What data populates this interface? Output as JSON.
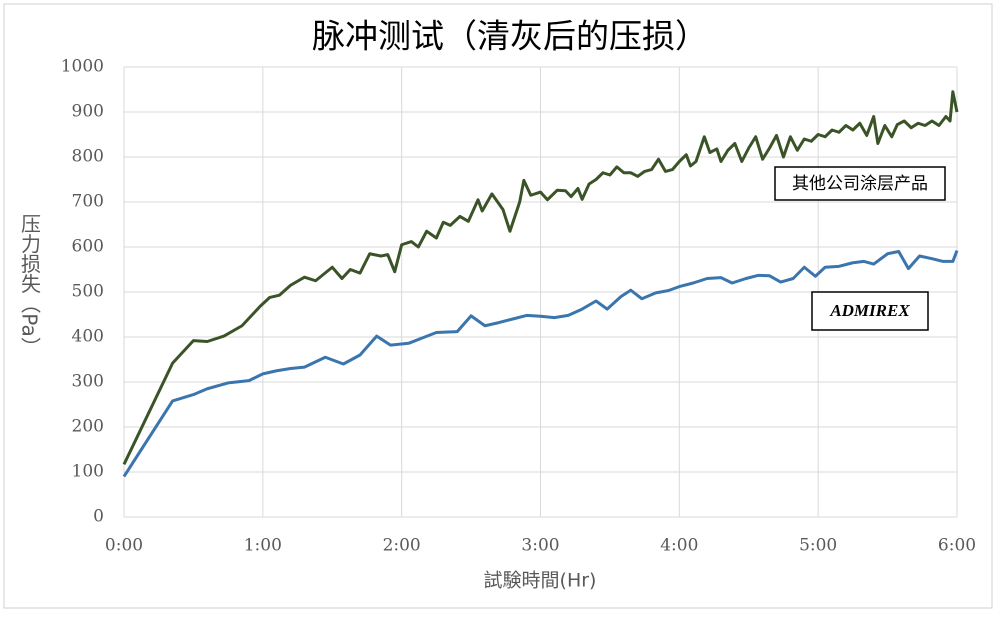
{
  "chart_data": {
    "type": "line",
    "title": "脉冲测试（清灰后的压损）",
    "x_label": "試験時間(Hr)",
    "y_label": "压力损失（Pa）",
    "xlim": [
      0,
      6
    ],
    "xticks": [
      {
        "value": 0,
        "label": "0:00"
      },
      {
        "value": 1,
        "label": "1:00"
      },
      {
        "value": 2,
        "label": "2:00"
      },
      {
        "value": 3,
        "label": "3:00"
      },
      {
        "value": 4,
        "label": "4:00"
      },
      {
        "value": 5,
        "label": "5:00"
      },
      {
        "value": 6,
        "label": "6:00"
      }
    ],
    "ylim": [
      0,
      1000
    ],
    "yticks": [
      0,
      100,
      200,
      300,
      400,
      500,
      600,
      700,
      800,
      900,
      1000
    ],
    "grid": true,
    "series": [
      {
        "name": "其他公司涂层产品",
        "color": "#3b5427",
        "x": [
          0,
          0.35,
          0.5,
          0.6,
          0.72,
          0.85,
          0.98,
          1.05,
          1.12,
          1.2,
          1.3,
          1.38,
          1.5,
          1.57,
          1.63,
          1.7,
          1.77,
          1.85,
          1.9,
          1.95,
          2.0,
          2.07,
          2.12,
          2.18,
          2.25,
          2.3,
          2.35,
          2.42,
          2.48,
          2.55,
          2.58,
          2.65,
          2.73,
          2.78,
          2.85,
          2.88,
          2.93,
          3.0,
          3.05,
          3.12,
          3.18,
          3.22,
          3.27,
          3.3,
          3.35,
          3.4,
          3.45,
          3.5,
          3.55,
          3.6,
          3.65,
          3.7,
          3.75,
          3.8,
          3.85,
          3.9,
          3.95,
          4.0,
          4.05,
          4.08,
          4.12,
          4.18,
          4.22,
          4.27,
          4.3,
          4.35,
          4.4,
          4.45,
          4.5,
          4.55,
          4.6,
          4.65,
          4.7,
          4.75,
          4.8,
          4.85,
          4.9,
          4.95,
          5.0,
          5.05,
          5.1,
          5.15,
          5.2,
          5.25,
          5.3,
          5.35,
          5.4,
          5.43,
          5.48,
          5.53,
          5.57,
          5.62,
          5.67,
          5.72,
          5.77,
          5.82,
          5.87,
          5.92,
          5.95,
          5.97,
          6.0
        ],
        "values": [
          117,
          342,
          392,
          390,
          402,
          425,
          468,
          488,
          493,
          515,
          533,
          525,
          555,
          530,
          550,
          542,
          585,
          580,
          583,
          545,
          605,
          612,
          600,
          635,
          620,
          655,
          648,
          668,
          657,
          705,
          680,
          718,
          683,
          635,
          700,
          748,
          715,
          722,
          705,
          726,
          725,
          712,
          730,
          706,
          740,
          750,
          765,
          760,
          778,
          765,
          765,
          757,
          768,
          772,
          795,
          768,
          772,
          790,
          805,
          780,
          790,
          845,
          810,
          818,
          790,
          815,
          830,
          790,
          820,
          845,
          795,
          820,
          848,
          800,
          845,
          815,
          840,
          835,
          850,
          845,
          860,
          855,
          870,
          860,
          875,
          848,
          890,
          830,
          870,
          845,
          872,
          880,
          865,
          875,
          870,
          880,
          870,
          890,
          880,
          945,
          900
        ]
      },
      {
        "name": "ADMIREX",
        "color": "#3a75ae",
        "x": [
          0,
          0.35,
          0.5,
          0.6,
          0.75,
          0.9,
          1.0,
          1.1,
          1.2,
          1.3,
          1.45,
          1.58,
          1.7,
          1.82,
          1.92,
          2.05,
          2.15,
          2.25,
          2.4,
          2.5,
          2.6,
          2.7,
          2.8,
          2.9,
          3.0,
          3.1,
          3.2,
          3.3,
          3.4,
          3.48,
          3.58,
          3.65,
          3.73,
          3.83,
          3.92,
          4.0,
          4.1,
          4.2,
          4.3,
          4.38,
          4.48,
          4.57,
          4.65,
          4.73,
          4.82,
          4.9,
          4.98,
          5.05,
          5.15,
          5.25,
          5.33,
          5.4,
          5.5,
          5.58,
          5.65,
          5.73,
          5.82,
          5.9,
          5.97,
          6.0
        ],
        "values": [
          90,
          258,
          272,
          285,
          298,
          303,
          318,
          325,
          330,
          333,
          355,
          340,
          360,
          402,
          382,
          386,
          398,
          410,
          412,
          447,
          425,
          432,
          440,
          448,
          446,
          443,
          448,
          462,
          480,
          462,
          490,
          504,
          485,
          498,
          503,
          512,
          520,
          530,
          532,
          520,
          530,
          537,
          536,
          522,
          530,
          555,
          535,
          555,
          557,
          565,
          568,
          562,
          585,
          590,
          552,
          580,
          574,
          568,
          568,
          592
        ]
      }
    ]
  }
}
